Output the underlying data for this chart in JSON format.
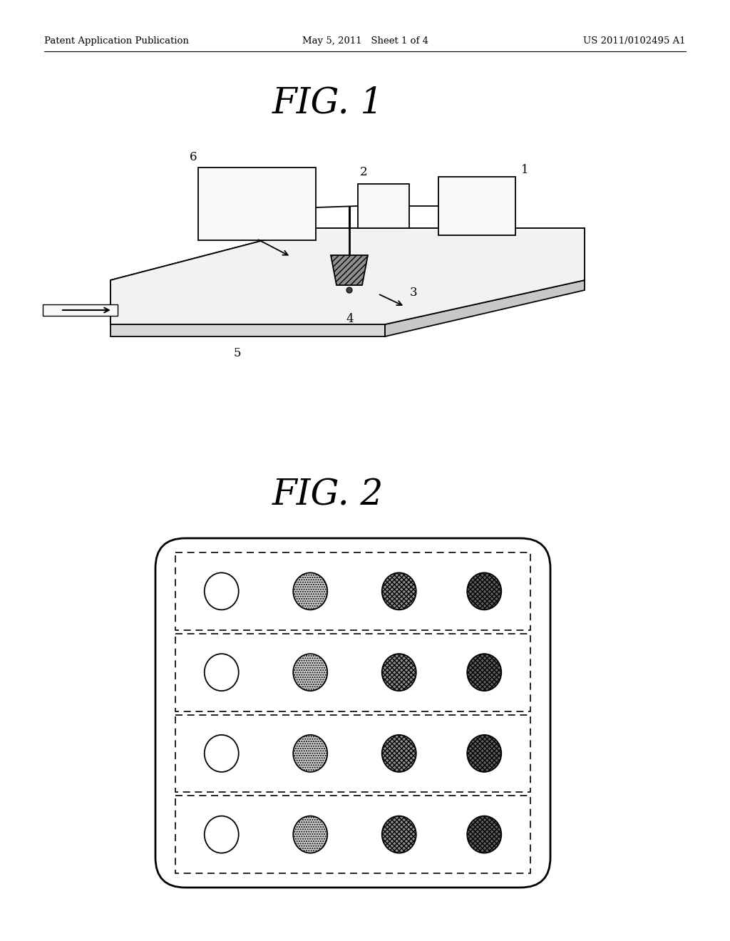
{
  "background_color": "#ffffff",
  "header_left": "Patent Application Publication",
  "header_center": "May 5, 2011   Sheet 1 of 4",
  "header_right": "US 2011/0102495 A1",
  "fig1_title": "FIG. 1",
  "fig2_title": "FIG. 2",
  "circle_fill_colors": [
    "#ffffff",
    "#d0d0d0",
    "#909090",
    "#606060"
  ],
  "circle_hatch": [
    "",
    ".....",
    "xxxxx",
    "xxxxx"
  ]
}
